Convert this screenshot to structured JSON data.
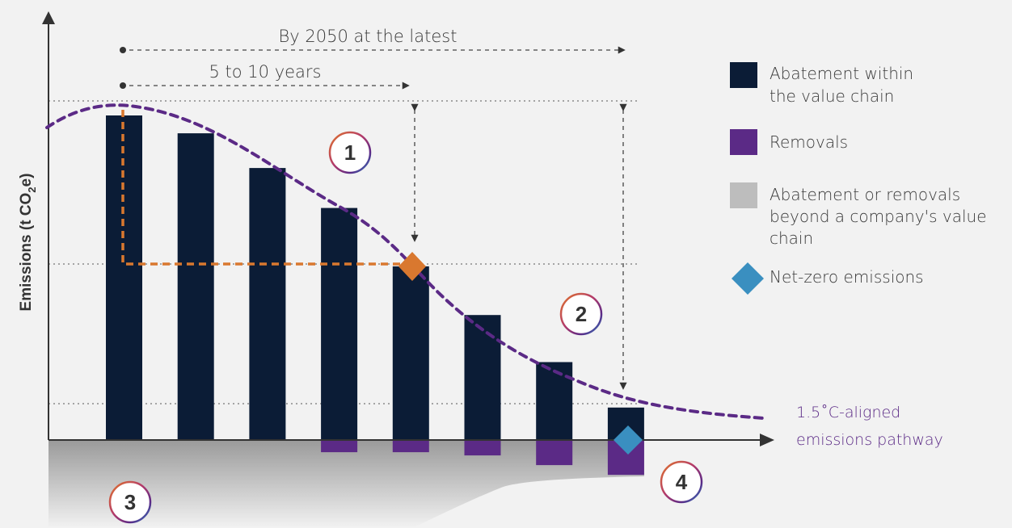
{
  "chart_data": {
    "type": "bar",
    "ylabel": "Emissions (t CO2e)",
    "ylabel_parts": {
      "main": "Emissions (t CO",
      "sub": "2",
      "end": "e)"
    },
    "categories": [
      "",
      "",
      "",
      "",
      "",
      "",
      "",
      ""
    ],
    "series": [
      {
        "name": "Abatement within the value chain",
        "values": [
          100,
          94.5,
          83.8,
          71.5,
          53.5,
          38.5,
          24,
          10
        ]
      },
      {
        "name": "Removals",
        "values": [
          0,
          0,
          0,
          -3.5,
          -3.5,
          -4.5,
          -7.5,
          -10.5
        ]
      }
    ],
    "pathway": {
      "label_line1": "1.5˚C-aligned",
      "label_line2": "emissions pathway",
      "values": [
        100,
        94,
        82,
        68,
        53,
        38,
        24,
        14
      ]
    },
    "annotations": {
      "long_horizon": "By 2050 at the latest",
      "short_horizon": "5 to 10 years"
    },
    "steps": [
      "1",
      "2",
      "3",
      "4"
    ],
    "legend_position": "right",
    "grid": false
  },
  "legend": {
    "items": [
      {
        "line1": "Abatement within",
        "line2": "the value chain",
        "line3": "",
        "color": "#0b1c36",
        "shape": "square"
      },
      {
        "line1": "Removals",
        "line2": "",
        "line3": "",
        "color": "#5b2a86",
        "shape": "square"
      },
      {
        "line1": "Abatement or removals",
        "line2": "beyond a company's value",
        "line3": "chain",
        "color": "#bdbdbd",
        "shape": "square"
      },
      {
        "line1": "Net-zero emissions",
        "line2": "",
        "line3": "",
        "color": "#3a8fc0",
        "shape": "diamond"
      }
    ]
  },
  "colors": {
    "bar": "#0b1c36",
    "removal": "#5b2a86",
    "pathway": "#5b2a86",
    "interim_target": "#d9782f",
    "net_zero": "#3a8fc0",
    "beyond": "#bdbdbd"
  }
}
